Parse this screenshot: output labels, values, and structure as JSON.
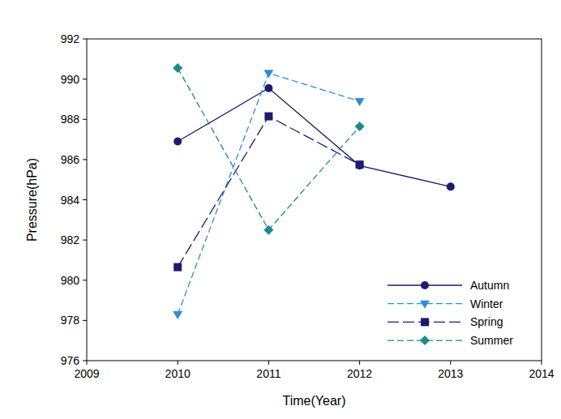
{
  "chart_data": {
    "type": "line",
    "x_label": "Time(Year)",
    "y_label": "Pressure(hPa)",
    "x": [
      2010,
      2011,
      2012,
      2013
    ],
    "series": [
      {
        "name": "Autumn",
        "color": "#1c1c6e",
        "marker": "circle",
        "line_style": "solid",
        "values": [
          986.9,
          989.55,
          985.7,
          984.65
        ]
      },
      {
        "name": "Winter",
        "color": "#2a8fd8",
        "marker": "triangle-down",
        "line_style": "dashed",
        "values": [
          978.3,
          990.3,
          988.9,
          null
        ]
      },
      {
        "name": "Spring",
        "color": "#1c1c6e",
        "marker": "square",
        "line_style": "long-dash",
        "values": [
          980.65,
          988.15,
          985.75,
          null
        ]
      },
      {
        "name": "Summer",
        "color": "#1e8a8a",
        "marker": "diamond",
        "line_style": "dashed",
        "values": [
          990.55,
          982.5,
          987.65,
          null
        ]
      }
    ],
    "xlim": [
      2009,
      2014
    ],
    "xticks": [
      2009,
      2010,
      2011,
      2012,
      2013,
      2014
    ],
    "ylim": [
      976,
      992
    ],
    "yticks": [
      976,
      978,
      980,
      982,
      984,
      986,
      988,
      990,
      992
    ],
    "grid": false,
    "legend": "lower right"
  }
}
